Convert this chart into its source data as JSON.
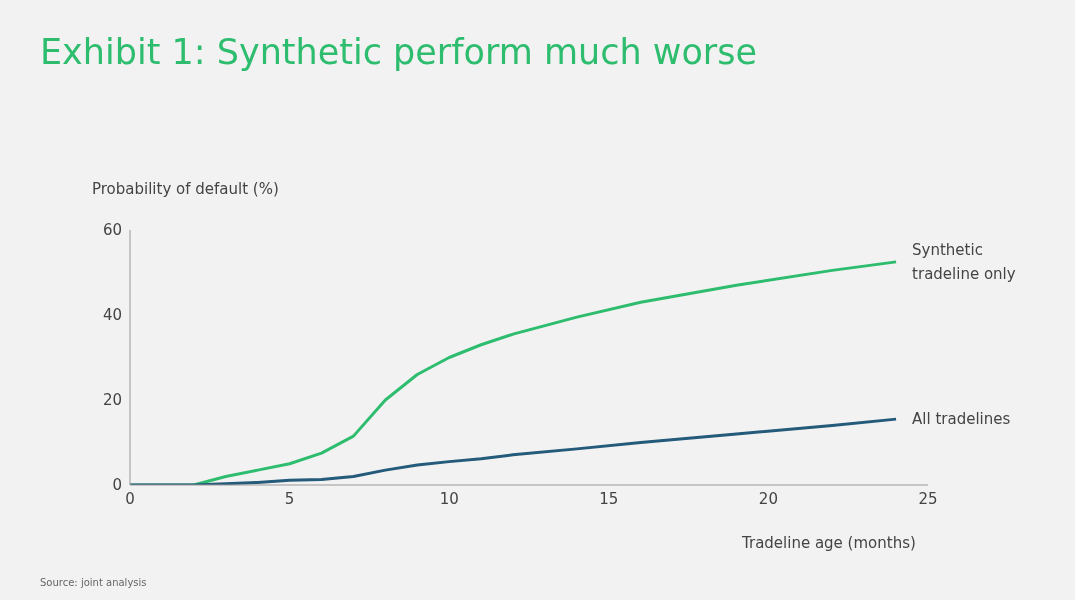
{
  "chart_data": {
    "type": "line",
    "title": "Exhibit 1: Synthetic perform much worse",
    "ylabel": "Probability of default (%)",
    "xlabel": "Tradeline age (months)",
    "annotations": [
      "Source: joint analysis"
    ],
    "x": [
      0,
      1,
      2,
      3,
      4,
      5,
      6,
      7,
      8,
      9,
      10,
      11,
      12,
      14,
      16,
      19,
      22,
      24
    ],
    "series": [
      {
        "name": "Synthetic tradeline only",
        "color": "#2ebd6e",
        "values": [
          0,
          0,
          0,
          2,
          3.5,
          5,
          7.5,
          11.5,
          20,
          26,
          30,
          33,
          35.5,
          39.5,
          43,
          47,
          50.5,
          52.5
        ]
      },
      {
        "name": "All tradelines",
        "color": "#245a7a",
        "values": [
          0,
          0,
          0,
          0.3,
          0.6,
          1.1,
          1.3,
          2,
          3.5,
          4.7,
          5.5,
          6.2,
          7.1,
          8.5,
          10,
          12,
          14,
          15.5
        ]
      }
    ],
    "xlim": [
      0,
      25
    ],
    "xticks": [
      0,
      5,
      10,
      15,
      20,
      25
    ],
    "ylim": [
      0,
      60
    ],
    "yticks": [
      0,
      20,
      40,
      60
    ],
    "grid": false,
    "legend": false,
    "marker": "none",
    "line_style": "solid"
  }
}
